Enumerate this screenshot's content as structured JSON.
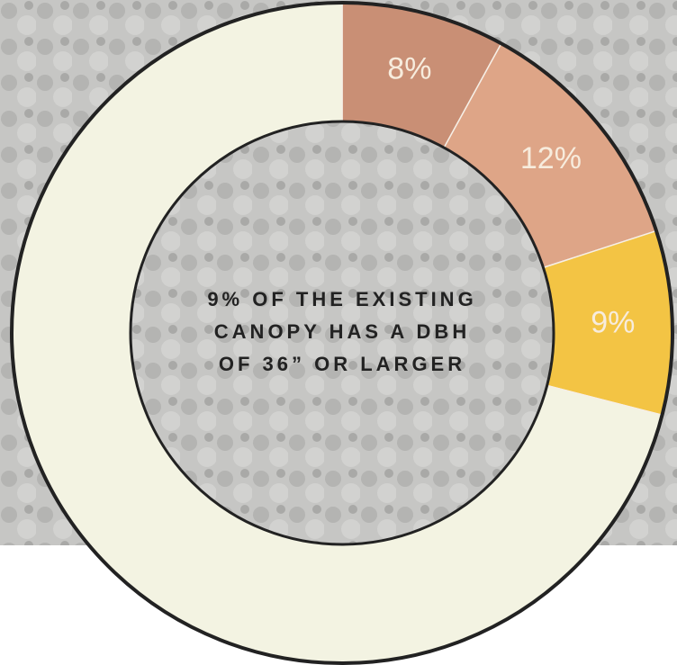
{
  "chart_data": {
    "type": "donut",
    "values": [
      8,
      12,
      9,
      71
    ],
    "value_labels": [
      "8%",
      "12%",
      "9%",
      null
    ],
    "colors": [
      "#c98f75",
      "#dea587",
      "#f3c444",
      "#f3f3e2"
    ],
    "center_text": [
      "9% OF THE EXISTING",
      "CANOPY HAS A DBH",
      "OF 36” OR LARGER"
    ]
  }
}
